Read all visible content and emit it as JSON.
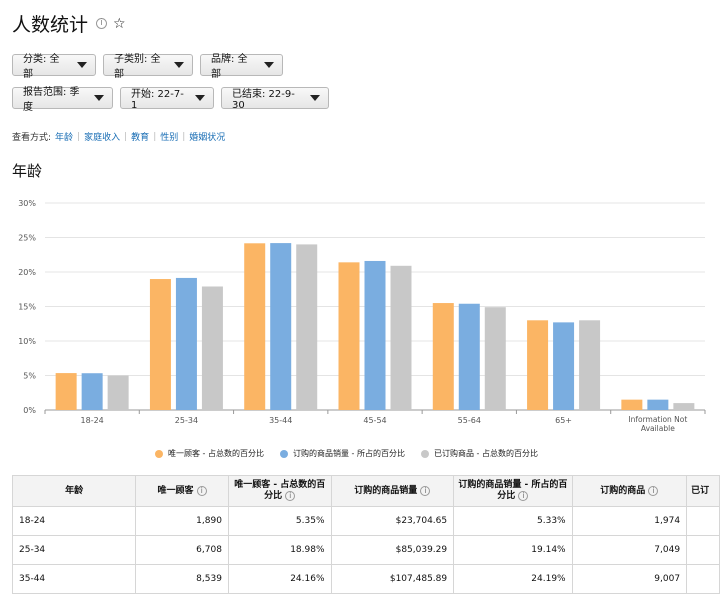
{
  "header": {
    "title": "人数统计",
    "info_icon": "ⓘ",
    "star_icon": "☆"
  },
  "filters": {
    "category": "分类: 全部",
    "subcategory": "子类别: 全部",
    "brand": "品牌: 全部",
    "report_range": "报告范围: 季度",
    "start": "开始: 22-7-1",
    "end": "已结束: 22-9-30"
  },
  "view_by": {
    "label": "查看方式:",
    "options": [
      "年龄",
      "家庭收入",
      "教育",
      "性别",
      "婚姻状况"
    ]
  },
  "section_title": "年龄",
  "chart_data": {
    "type": "bar",
    "categories": [
      "18-24",
      "25-34",
      "35-44",
      "45-54",
      "55-64",
      "65+",
      "Information Not Available"
    ],
    "series": [
      {
        "name": "唯一顾客 - 占总数的百分比",
        "color": "#fbb564",
        "values": [
          5.35,
          18.98,
          24.16,
          21.4,
          15.5,
          13.0,
          1.5
        ]
      },
      {
        "name": "订购的商品销量 - 所占的百分比",
        "color": "#7aade0",
        "values": [
          5.33,
          19.14,
          24.19,
          21.6,
          15.4,
          12.7,
          1.5
        ]
      },
      {
        "name": "已订购商品 - 占总数的百分比",
        "color": "#c8c8c8",
        "values": [
          5.0,
          17.9,
          24.0,
          20.9,
          14.9,
          13.0,
          1.0
        ]
      }
    ],
    "y_ticks": [
      "0%",
      "5%",
      "10%",
      "15%",
      "20%",
      "25%",
      "30%"
    ],
    "ylim": [
      0,
      30
    ],
    "grid": true,
    "legend_position": "bottom"
  },
  "table": {
    "headers": [
      "年龄",
      "唯一顾客",
      "唯一顾客 - 占总数的百分比",
      "订购的商品销量",
      "订购的商品销量 - 所占的百分比",
      "订购的商品",
      "已订"
    ],
    "rows": [
      [
        "18-24",
        "1,890",
        "5.35%",
        "$23,704.65",
        "5.33%",
        "1,974"
      ],
      [
        "25-34",
        "6,708",
        "18.98%",
        "$85,039.29",
        "19.14%",
        "7,049"
      ],
      [
        "35-44",
        "8,539",
        "24.16%",
        "$107,485.89",
        "24.19%",
        "9,007"
      ]
    ]
  }
}
